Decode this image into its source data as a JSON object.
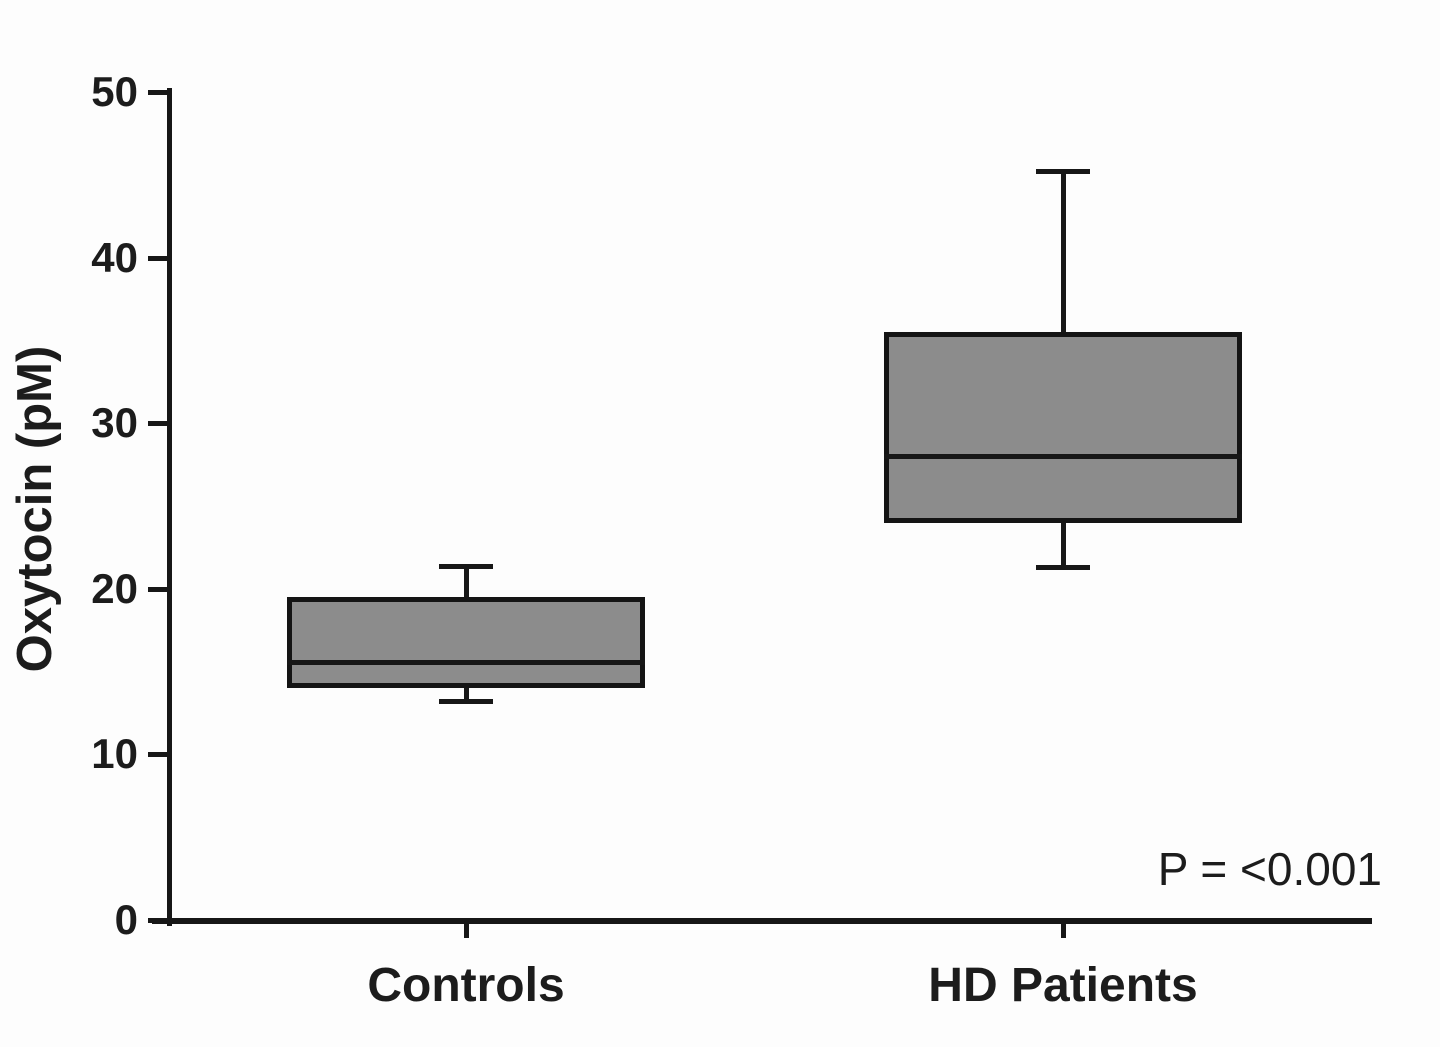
{
  "figure": {
    "background": "#fdfdfd",
    "axis_color": "#171717",
    "text_color": "#1c1c1c"
  },
  "chart_data": {
    "type": "box",
    "title": "",
    "xlabel": "",
    "ylabel": "Oxytocin (pM)",
    "ylim": [
      0,
      50
    ],
    "yticks": [
      0,
      10,
      20,
      30,
      40,
      50
    ],
    "categories": [
      "Controls",
      "HD Patients"
    ],
    "annotation": "P = <0.001",
    "grid": false,
    "legend_position": "none",
    "box_fill": "#8c8c8c",
    "box_edge": "#141414",
    "series": [
      {
        "name": "Controls",
        "whisker_low": 13.2,
        "q1": 14.0,
        "median": 15.6,
        "q3": 19.5,
        "whisker_high": 21.4
      },
      {
        "name": "HD Patients",
        "whisker_low": 21.3,
        "q1": 24.0,
        "median": 28.0,
        "q3": 35.5,
        "whisker_high": 45.2
      }
    ]
  }
}
